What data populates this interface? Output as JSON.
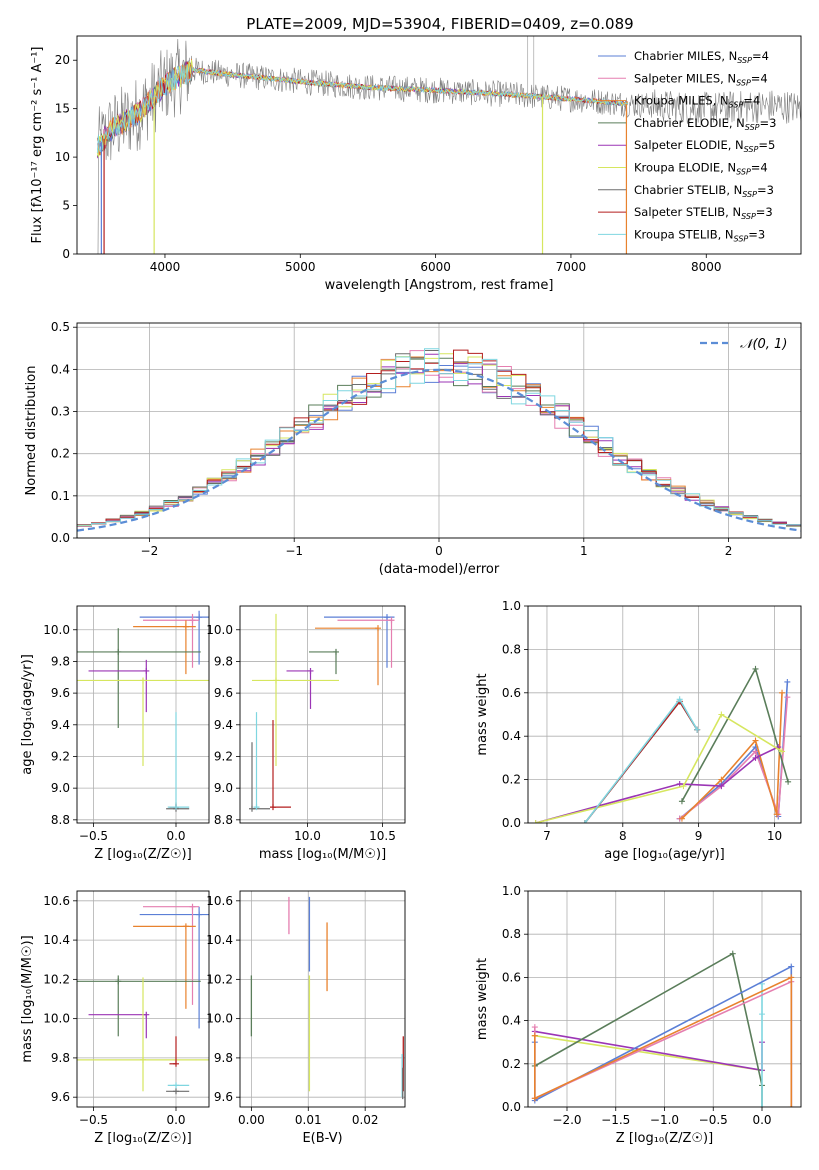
{
  "figure_title": "PLATE=2009, MJD=53904, FIBERID=0409, z=0.089",
  "series_colors": [
    "#5b7fd6",
    "#e57fb0",
    "#e8822e",
    "#5a7d5a",
    "#9b35b5",
    "#d6e65f",
    "#6e6e6e",
    "#b31e1e",
    "#7fd6e0"
  ],
  "chart_data": [
    {
      "type": "line",
      "title": "PLATE=2009, MJD=53904, FIBERID=0409, z=0.089",
      "xlabel": "wavelength [Angstrom, rest frame]",
      "ylabel": "Flux [fλ10⁻¹⁷ erg cm⁻² s⁻¹ A⁻¹]",
      "xlim": [
        3350,
        8700
      ],
      "ylim": [
        0,
        22.5
      ],
      "xticks": [
        "4000",
        "5000",
        "6000",
        "7000",
        "8000"
      ],
      "yticks": [
        "0",
        "5",
        "10",
        "15",
        "20"
      ],
      "grid": false,
      "legend_position": "top-right",
      "legend": [
        "Chabrier MILES, N_SSP=4",
        "Salpeter MILES, N_SSP=4",
        "Kroupa MILES, N_SSP=4",
        "Chabrier ELODIE, N_SSP=3",
        "Salpeter ELODIE, N_SSP=5",
        "Kroupa ELODIE, N_SSP=4",
        "Chabrier STELIB, N_SSP=3",
        "Salpeter STELIB, N_SSP=3",
        "Kroupa STELIB, N_SSP=3"
      ],
      "continuum": {
        "x": [
          3500,
          3600,
          3800,
          4000,
          4200,
          4500,
          5000,
          5500,
          6000,
          6500,
          7000,
          7500,
          8000,
          8500,
          8700
        ],
        "y": [
          11.0,
          12.8,
          14.5,
          17.5,
          19.0,
          18.5,
          17.8,
          17.2,
          16.9,
          16.5,
          16.0,
          15.4,
          15.0,
          15.3,
          15.1
        ]
      },
      "data_noise_amplitude": 2.5,
      "data_range": [
        3500,
        8700
      ],
      "model_range": [
        3500,
        7420
      ],
      "dropouts": [
        {
          "x": 3530,
          "series": 0
        },
        {
          "x": 3550,
          "series": 7
        },
        {
          "x": 3920,
          "series": 5
        },
        {
          "x": 6790,
          "series": 5
        },
        {
          "x": 7410,
          "series": 2
        }
      ],
      "spikes": [
        {
          "x": 6680,
          "y": 22.5
        },
        {
          "x": 6725,
          "y": 22.5
        }
      ]
    },
    {
      "type": "line",
      "xlabel": "(data-model)/error",
      "ylabel": "Normed distribution",
      "xlim": [
        -2.5,
        2.5
      ],
      "ylim": [
        0,
        0.51
      ],
      "xticks": [
        "−2",
        "−1",
        "0",
        "1",
        "2"
      ],
      "yticks": [
        "0.0",
        "0.1",
        "0.2",
        "0.3",
        "0.4",
        "0.5"
      ],
      "grid": true,
      "legend_position": "top-right",
      "legend": [
        "𝒩(0, 1)"
      ],
      "bin_width": 0.1,
      "hist_seed_note": "step histograms approximate N(0,1)",
      "gaussian": {
        "mean": 0,
        "sigma": 1
      }
    },
    {
      "type": "scatter",
      "xlabel": "Z [log₁₀(Z/Z☉)]",
      "ylabel": "age  [log₁₀(age/yr)]",
      "xlim": [
        -0.6,
        0.2
      ],
      "ylim": [
        8.78,
        10.15
      ],
      "xticks": [
        "−0.5",
        "0.0"
      ],
      "yticks": [
        "8.8",
        "9.0",
        "9.2",
        "9.4",
        "9.6",
        "9.8",
        "10.0"
      ],
      "grid": true,
      "points": [
        {
          "series": 0,
          "x": 0.14,
          "y": 10.08,
          "xerr": [
            0.36,
            0.06
          ],
          "yerr": [
            0.3,
            0.04
          ]
        },
        {
          "series": 1,
          "x": 0.1,
          "y": 10.06,
          "xerr": [
            0.3,
            0.04
          ],
          "yerr": [
            0.3,
            0.04
          ]
        },
        {
          "series": 2,
          "x": 0.06,
          "y": 10.02,
          "xerr": [
            0.32,
            0.06
          ],
          "yerr": [
            0.3,
            0.04
          ]
        },
        {
          "series": 3,
          "x": -0.35,
          "y": 9.86,
          "xerr": [
            0.25,
            0.5
          ],
          "yerr": [
            0.48,
            0.15
          ]
        },
        {
          "series": 4,
          "x": -0.18,
          "y": 9.74,
          "xerr": [
            0.35,
            0.0
          ],
          "yerr": [
            0.26,
            0.07
          ]
        },
        {
          "series": 5,
          "x": -0.2,
          "y": 9.68,
          "xerr": [
            0.45,
            0.4
          ],
          "yerr": [
            0.54,
            0.0
          ]
        },
        {
          "series": 6,
          "x": 0.0,
          "y": 8.87,
          "xerr": [
            0.06,
            0.08
          ],
          "yerr": [
            0.0,
            0.04
          ]
        },
        {
          "series": 7,
          "x": 0.0,
          "y": 8.88,
          "xerr": [
            0.04,
            0.0
          ],
          "yerr": [
            0.0,
            0.0
          ]
        },
        {
          "series": 8,
          "x": 0.0,
          "y": 8.88,
          "xerr": [
            0.05,
            0.08
          ],
          "yerr": [
            0.0,
            0.6
          ]
        }
      ]
    },
    {
      "type": "scatter",
      "xlabel": "mass [log₁₀(M/M☉)]",
      "ylabel": "",
      "xlim": [
        9.55,
        10.65
      ],
      "ylim": [
        8.78,
        10.15
      ],
      "xticks": [
        "10.0",
        "10.5"
      ],
      "yticks": [
        "8.8",
        "9.0",
        "9.2",
        "9.4",
        "9.6",
        "9.8",
        "10.0"
      ],
      "grid": true,
      "points": [
        {
          "series": 0,
          "x": 10.53,
          "y": 10.08,
          "xerr": [
            0.42,
            0.05
          ],
          "yerr": [
            0.32,
            0.0
          ]
        },
        {
          "series": 1,
          "x": 10.56,
          "y": 10.06,
          "xerr": [
            0.36,
            0.0
          ],
          "yerr": [
            0.3,
            0.0
          ]
        },
        {
          "series": 2,
          "x": 10.47,
          "y": 10.01,
          "xerr": [
            0.42,
            0.0
          ],
          "yerr": [
            0.36,
            0.0
          ]
        },
        {
          "series": 3,
          "x": 10.19,
          "y": 9.86,
          "xerr": [
            0.18,
            0.0
          ],
          "yerr": [
            0.14,
            0.0
          ]
        },
        {
          "series": 4,
          "x": 10.02,
          "y": 9.74,
          "xerr": [
            0.16,
            0.0
          ],
          "yerr": [
            0.24,
            0.0
          ]
        },
        {
          "series": 5,
          "x": 9.79,
          "y": 9.68,
          "xerr": [
            0.16,
            0.42
          ],
          "yerr": [
            0.54,
            0.42
          ]
        },
        {
          "series": 6,
          "x": 9.63,
          "y": 8.87,
          "xerr": [
            0.0,
            0.12
          ],
          "yerr": [
            0.0,
            0.42
          ]
        },
        {
          "series": 7,
          "x": 9.77,
          "y": 8.88,
          "xerr": [
            0.0,
            0.12
          ],
          "yerr": [
            0.0,
            0.55
          ]
        },
        {
          "series": 8,
          "x": 9.66,
          "y": 8.88,
          "xerr": [
            0.0,
            0.0
          ],
          "yerr": [
            0.0,
            0.6
          ]
        }
      ]
    },
    {
      "type": "line",
      "xlabel": "age  [log₁₀(age/yr)]",
      "ylabel": "mass weight",
      "xlim": [
        6.75,
        10.35
      ],
      "ylim": [
        0,
        1.0
      ],
      "xticks": [
        "7",
        "8",
        "9",
        "10"
      ],
      "yticks": [
        "0.0",
        "0.2",
        "0.4",
        "0.6",
        "0.8",
        "1.0"
      ],
      "grid": true,
      "series": [
        {
          "color_index": 0,
          "x": [
            8.75,
            9.3,
            9.75,
            10.05,
            10.17
          ],
          "y": [
            0.02,
            0.18,
            0.35,
            0.03,
            0.65
          ]
        },
        {
          "color_index": 1,
          "x": [
            8.75,
            9.3,
            9.75,
            10.05,
            10.17
          ],
          "y": [
            0.02,
            0.17,
            0.33,
            0.04,
            0.58
          ]
        },
        {
          "color_index": 2,
          "x": [
            8.78,
            9.3,
            9.75,
            10.03,
            10.1
          ],
          "y": [
            0.02,
            0.2,
            0.38,
            0.04,
            0.6
          ]
        },
        {
          "color_index": 3,
          "x": [
            8.78,
            9.75,
            10.18
          ],
          "y": [
            0.1,
            0.71,
            0.19
          ]
        },
        {
          "color_index": 4,
          "x": [
            6.85,
            8.75,
            9.3,
            9.75,
            10.05
          ],
          "y": [
            0.0,
            0.18,
            0.17,
            0.3,
            0.35
          ]
        },
        {
          "color_index": 5,
          "x": [
            6.85,
            8.8,
            9.3,
            10.1
          ],
          "y": [
            0.0,
            0.17,
            0.5,
            0.33
          ]
        },
        {
          "color_index": 6,
          "x": [
            7.5,
            8.75,
            8.98
          ],
          "y": [
            0.0,
            0.56,
            0.43
          ]
        },
        {
          "color_index": 7,
          "x": [
            7.5,
            8.75,
            8.98
          ],
          "y": [
            0.0,
            0.56,
            0.43
          ]
        },
        {
          "color_index": 8,
          "x": [
            7.5,
            8.75,
            8.98
          ],
          "y": [
            0.0,
            0.57,
            0.43
          ]
        }
      ]
    },
    {
      "type": "scatter",
      "xlabel": "Z [log₁₀(Z/Z☉)]",
      "ylabel": "mass [log₁₀(M/M☉)]",
      "xlim": [
        -0.6,
        0.2
      ],
      "ylim": [
        9.55,
        10.65
      ],
      "xticks": [
        "−0.5",
        "0.0"
      ],
      "yticks": [
        "9.6",
        "9.8",
        "10.0",
        "10.2",
        "10.4",
        "10.6"
      ],
      "grid": true,
      "points": [
        {
          "series": 0,
          "x": 0.14,
          "y": 10.53,
          "xerr": [
            0.36,
            0.06
          ],
          "yerr": [
            0.58,
            0.04
          ]
        },
        {
          "series": 1,
          "x": 0.1,
          "y": 10.57,
          "xerr": [
            0.3,
            0.04
          ],
          "yerr": [
            0.5,
            0.0
          ]
        },
        {
          "series": 2,
          "x": 0.06,
          "y": 10.47,
          "xerr": [
            0.32,
            0.06
          ],
          "yerr": [
            0.42,
            0.0
          ]
        },
        {
          "series": 3,
          "x": -0.35,
          "y": 10.19,
          "xerr": [
            0.25,
            0.5
          ],
          "yerr": [
            0.28,
            0.03
          ]
        },
        {
          "series": 4,
          "x": -0.18,
          "y": 10.02,
          "xerr": [
            0.35,
            0.0
          ],
          "yerr": [
            0.12,
            0.0
          ]
        },
        {
          "series": 5,
          "x": -0.2,
          "y": 9.79,
          "xerr": [
            0.45,
            0.4
          ],
          "yerr": [
            0.16,
            0.42
          ]
        },
        {
          "series": 6,
          "x": 0.0,
          "y": 9.63,
          "xerr": [
            0.06,
            0.08
          ],
          "yerr": [
            0.0,
            0.0
          ]
        },
        {
          "series": 7,
          "x": 0.0,
          "y": 9.77,
          "xerr": [
            0.04,
            0.0
          ],
          "yerr": [
            0.0,
            0.14
          ]
        },
        {
          "series": 8,
          "x": 0.0,
          "y": 9.66,
          "xerr": [
            0.05,
            0.08
          ],
          "yerr": [
            0.0,
            0.0
          ]
        }
      ]
    },
    {
      "type": "scatter",
      "xlabel": "E(B-V)",
      "ylabel": "",
      "xlim": [
        -0.002,
        0.027
      ],
      "ylim": [
        9.55,
        10.65
      ],
      "xticks": [
        "0.00",
        "0.01",
        "0.02"
      ],
      "yticks": [
        "9.6",
        "9.8",
        "10.0",
        "10.2",
        "10.4",
        "10.6"
      ],
      "grid": true,
      "vlines": [
        {
          "series": 0,
          "x": 0.0102,
          "y": [
            10.24,
            10.62
          ]
        },
        {
          "series": 1,
          "x": 0.0066,
          "y": [
            10.43,
            10.62
          ]
        },
        {
          "series": 2,
          "x": 0.0133,
          "y": [
            10.14,
            10.49
          ]
        },
        {
          "series": 3,
          "x": 0.0,
          "y": [
            9.91,
            10.22
          ]
        },
        {
          "series": 5,
          "x": 0.0102,
          "y": [
            9.63,
            10.22
          ]
        },
        {
          "series": 7,
          "x": 0.0267,
          "y": [
            9.63,
            9.91
          ]
        },
        {
          "series": 8,
          "x": 0.0265,
          "y": [
            9.6,
            9.82
          ]
        },
        {
          "series": 6,
          "x": 0.0266,
          "y": [
            9.59,
            9.75
          ]
        }
      ]
    },
    {
      "type": "line",
      "xlabel": "Z [log₁₀(Z/Z☉)]",
      "ylabel": "mass weight",
      "xlim": [
        -2.4,
        0.4
      ],
      "ylim": [
        0,
        1.0
      ],
      "xticks": [
        "−2.0",
        "−1.5",
        "−1.0",
        "−0.5",
        "0.0"
      ],
      "yticks": [
        "0.0",
        "0.2",
        "0.4",
        "0.6",
        "0.8",
        "1.0"
      ],
      "grid": true,
      "series": [
        {
          "color_index": 5,
          "x": [
            -2.33,
            0.0,
            -2.33
          ],
          "y": [
            0.33,
            0.17,
            0.33
          ]
        },
        {
          "color_index": 4,
          "x": [
            -2.33,
            0.0,
            0.0
          ],
          "y": [
            0.35,
            0.17,
            0.3
          ]
        },
        {
          "color_index": 3,
          "x": [
            -2.33,
            -0.3,
            0.0,
            0.0
          ],
          "y": [
            0.19,
            0.71,
            0.1,
            0.0
          ]
        },
        {
          "color_index": 8,
          "x": [
            0.0,
            0.0,
            0.0
          ],
          "y": [
            0.57,
            0.43,
            0.0
          ]
        },
        {
          "color_index": 0,
          "x": [
            -2.33,
            -2.33,
            0.3,
            0.3
          ],
          "y": [
            0.3,
            0.03,
            0.65,
            0.0
          ]
        },
        {
          "color_index": 1,
          "x": [
            -2.33,
            -2.33,
            0.3,
            0.3
          ],
          "y": [
            0.37,
            0.04,
            0.58,
            0.0
          ]
        },
        {
          "color_index": 2,
          "x": [
            -2.33,
            -2.33,
            0.3,
            0.3
          ],
          "y": [
            0.33,
            0.04,
            0.6,
            0.0
          ]
        }
      ]
    }
  ]
}
